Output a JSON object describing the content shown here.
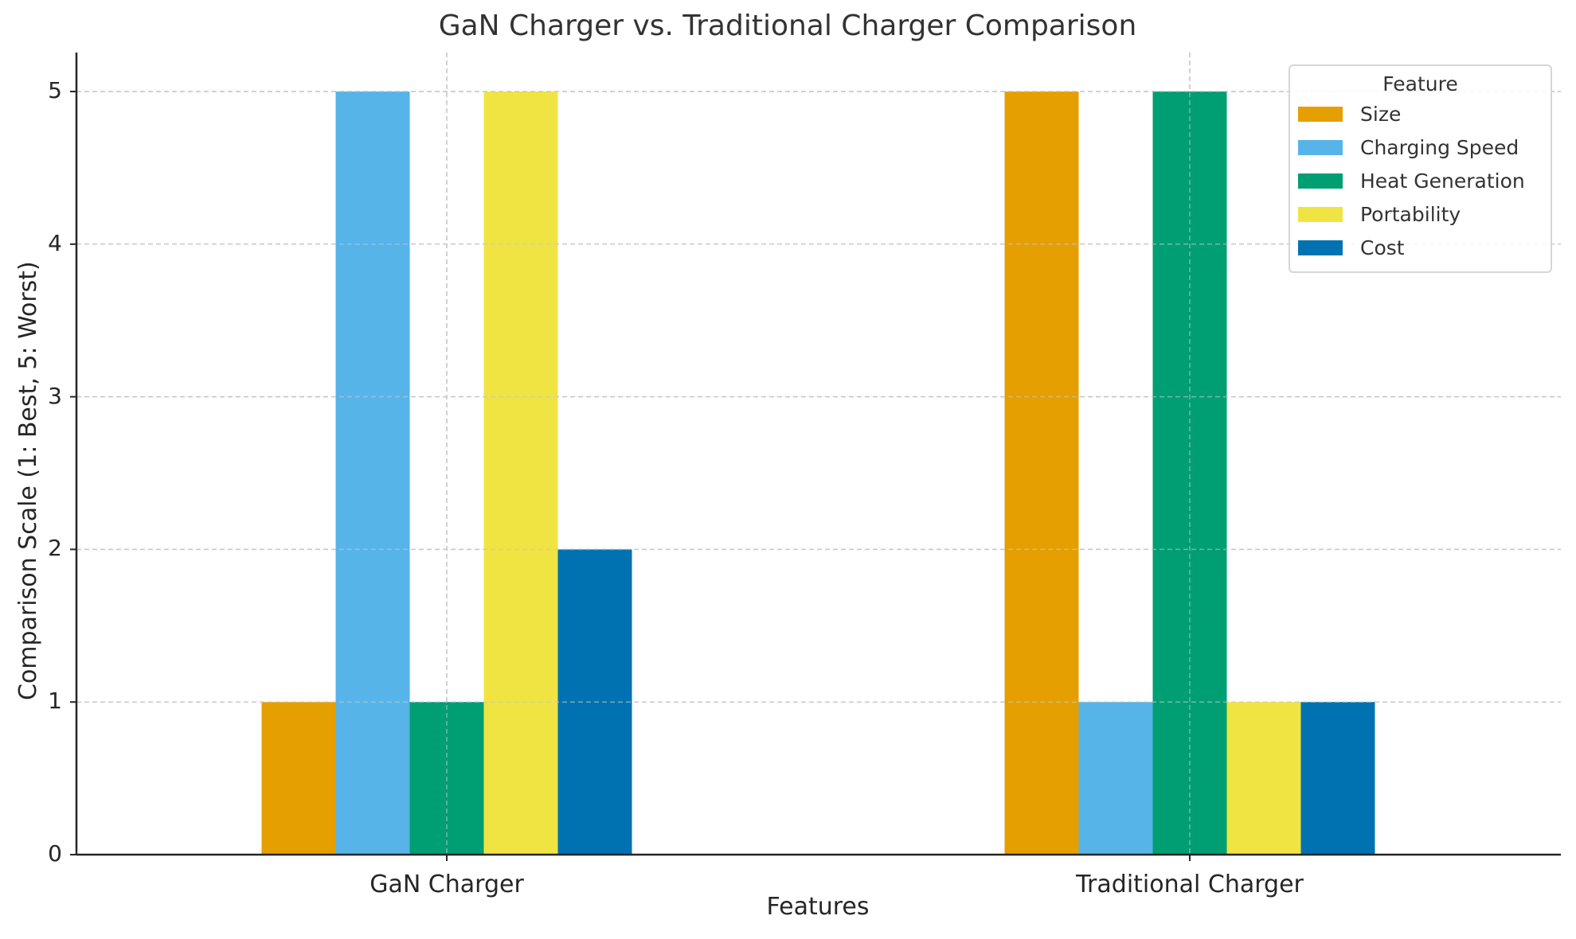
{
  "chart_data": {
    "type": "bar",
    "title": "GaN Charger vs. Traditional Charger Comparison",
    "xlabel": "Features",
    "ylabel": "Comparison Scale (1: Best, 5: Worst)",
    "categories": [
      "GaN Charger",
      "Traditional Charger"
    ],
    "series": [
      {
        "name": "Size",
        "color": "#E69F00",
        "values": [
          1,
          5
        ]
      },
      {
        "name": "Charging Speed",
        "color": "#56B4E9",
        "values": [
          5,
          1
        ]
      },
      {
        "name": "Heat Generation",
        "color": "#009E73",
        "values": [
          1,
          5
        ]
      },
      {
        "name": "Portability",
        "color": "#F0E442",
        "values": [
          5,
          1
        ]
      },
      {
        "name": "Cost",
        "color": "#0072B2",
        "values": [
          2,
          1
        ]
      }
    ],
    "ylim": [
      0,
      5.25
    ],
    "yticks": [
      0,
      1,
      2,
      3,
      4,
      5
    ],
    "grid": true,
    "legend": {
      "title": "Feature",
      "position": "upper right"
    }
  }
}
